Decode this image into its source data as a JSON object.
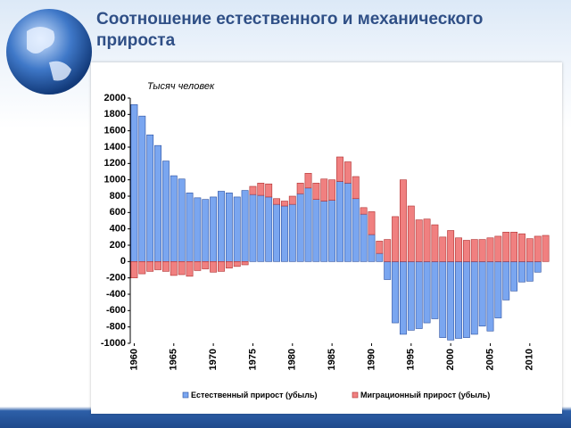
{
  "chart_data": {
    "type": "bar",
    "title": "Соотношение естественного и механического прироста",
    "y_label": "Тысяч человек",
    "x": [
      1960,
      1961,
      1962,
      1963,
      1964,
      1965,
      1966,
      1967,
      1968,
      1969,
      1970,
      1971,
      1972,
      1973,
      1974,
      1975,
      1976,
      1977,
      1978,
      1979,
      1980,
      1981,
      1982,
      1983,
      1984,
      1985,
      1986,
      1987,
      1988,
      1989,
      1990,
      1991,
      1992,
      1993,
      1994,
      1995,
      1996,
      1997,
      1998,
      1999,
      2000,
      2001,
      2002,
      2003,
      2004,
      2005,
      2006,
      2007,
      2008,
      2009,
      2010,
      2011,
      2012
    ],
    "series": [
      {
        "name": "Естественный прирост (убыль)",
        "color": "#7aa6f0",
        "values": [
          1920,
          1780,
          1550,
          1420,
          1230,
          1050,
          1010,
          840,
          780,
          760,
          790,
          860,
          840,
          790,
          870,
          820,
          810,
          790,
          700,
          680,
          700,
          830,
          900,
          760,
          740,
          750,
          980,
          960,
          770,
          580,
          330,
          100,
          -220,
          -750,
          -890,
          -840,
          -820,
          -750,
          -700,
          -930,
          -960,
          -940,
          -930,
          -890,
          -790,
          -850,
          -690,
          -470,
          -360,
          -250,
          -240,
          -130,
          0
        ]
      },
      {
        "name": "Миграционный прирост (убыль)",
        "color": "#f08080",
        "values": [
          -200,
          -150,
          -120,
          -100,
          -120,
          -170,
          -160,
          -180,
          -110,
          -90,
          -130,
          -120,
          -80,
          -60,
          -40,
          100,
          150,
          160,
          70,
          60,
          100,
          130,
          180,
          200,
          270,
          250,
          300,
          260,
          270,
          80,
          280,
          150,
          270,
          550,
          1000,
          680,
          510,
          520,
          450,
          300,
          380,
          290,
          260,
          270,
          270,
          290,
          310,
          360,
          360,
          340,
          280,
          310,
          320
        ]
      }
    ],
    "xlim": [
      1959.5,
      2012.5
    ],
    "xticks": [
      1960,
      1965,
      1970,
      1975,
      1980,
      1985,
      1990,
      1995,
      2000,
      2005,
      2010
    ],
    "ylim": [
      -1000,
      2000
    ],
    "yticks": [
      -1000,
      -800,
      -600,
      -400,
      -200,
      0,
      200,
      400,
      600,
      800,
      1000,
      1200,
      1400,
      1600,
      1800,
      2000
    ],
    "stacked": true,
    "grid": false
  }
}
